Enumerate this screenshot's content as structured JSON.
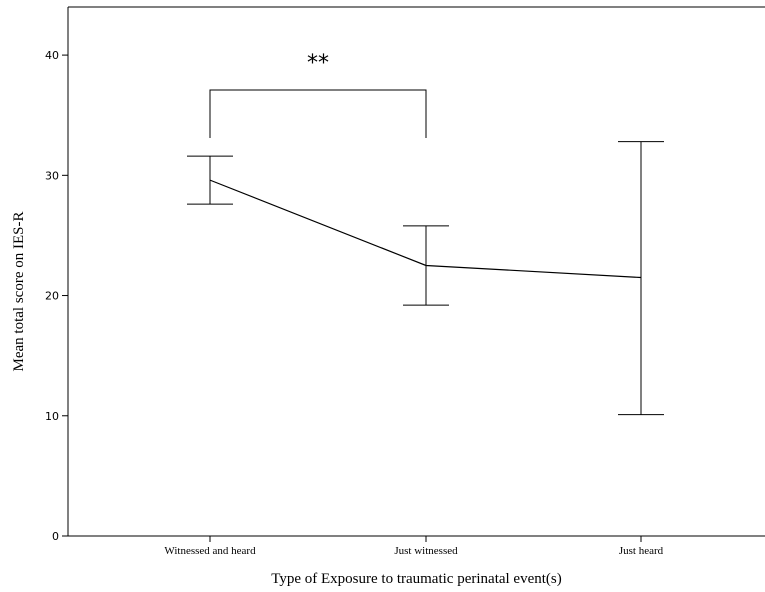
{
  "chart_data": {
    "type": "line",
    "categories": [
      "Witnessed and heard",
      "Just witnessed",
      "Just heard"
    ],
    "series": [
      {
        "values": [
          29.6,
          22.5,
          21.5
        ],
        "error_low": [
          27.6,
          19.2,
          10.1
        ],
        "error_high": [
          31.6,
          25.8,
          32.8
        ]
      }
    ],
    "xlabel": "Type of Exposure to traumatic perinatal event(s)",
    "ylabel": "Mean total score on IES-R",
    "ylim": [
      0,
      44
    ],
    "yticks": [
      0,
      10,
      20,
      30,
      40
    ],
    "grid": false,
    "annotations": [
      {
        "text": "**",
        "from_category": 0,
        "to_category": 1,
        "bracket_y": 37.1,
        "bracket_bottom": 33.1
      }
    ]
  }
}
